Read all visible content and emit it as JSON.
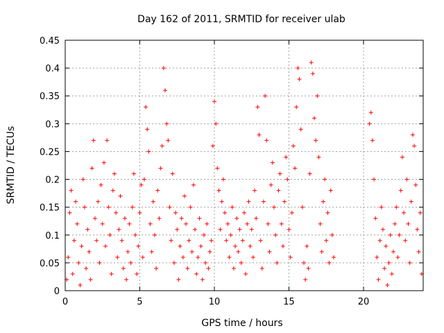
{
  "chart_data": {
    "type": "scatter",
    "title": "Day 162 of 2011, SRMTID for receiver ulab",
    "xlabel": "GPS time / hours",
    "ylabel": "SRMTID / TECUs",
    "xlim": [
      0,
      24
    ],
    "ylim": [
      0,
      0.45
    ],
    "xticks": [
      0,
      5,
      10,
      15,
      20
    ],
    "xtick_labels": [
      "0",
      "5",
      "10",
      "15",
      "20"
    ],
    "yticks": [
      0,
      0.05,
      0.1,
      0.15,
      0.2,
      0.25,
      0.3,
      0.35,
      0.4,
      0.45
    ],
    "ytick_labels": [
      "0",
      "0.05",
      "0.1",
      "0.15",
      "0.2",
      "0.25",
      "0.3",
      "0.35",
      "0.4",
      "0.45"
    ],
    "grid": true,
    "marker": "+",
    "color": "#ff0000",
    "series": [
      {
        "name": "SRMTID",
        "points": [
          [
            0.1,
            0.02
          ],
          [
            0.2,
            0.06
          ],
          [
            0.3,
            0.14
          ],
          [
            0.4,
            0.18
          ],
          [
            0.5,
            0.03
          ],
          [
            0.6,
            0.09
          ],
          [
            0.7,
            0.16
          ],
          [
            0.8,
            0.12
          ],
          [
            0.9,
            0.05
          ],
          [
            1.0,
            0.01
          ],
          [
            1.1,
            0.08
          ],
          [
            1.2,
            0.2
          ],
          [
            1.3,
            0.15
          ],
          [
            1.4,
            0.04
          ],
          [
            1.5,
            0.11
          ],
          [
            1.6,
            0.07
          ],
          [
            1.7,
            0.02
          ],
          [
            1.8,
            0.22
          ],
          [
            1.9,
            0.27
          ],
          [
            2.0,
            0.13
          ],
          [
            2.1,
            0.09
          ],
          [
            2.2,
            0.16
          ],
          [
            2.3,
            0.05
          ],
          [
            2.4,
            0.19
          ],
          [
            2.5,
            0.12
          ],
          [
            2.6,
            0.23
          ],
          [
            2.7,
            0.08
          ],
          [
            2.8,
            0.27
          ],
          [
            2.9,
            0.15
          ],
          [
            3.0,
            0.1
          ],
          [
            3.1,
            0.03
          ],
          [
            3.2,
            0.18
          ],
          [
            3.3,
            0.21
          ],
          [
            3.4,
            0.14
          ],
          [
            3.5,
            0.06
          ],
          [
            3.6,
            0.11
          ],
          [
            3.7,
            0.17
          ],
          [
            3.8,
            0.09
          ],
          [
            3.9,
            0.04
          ],
          [
            4.0,
            0.13
          ],
          [
            4.1,
            0.02
          ],
          [
            4.2,
            0.07
          ],
          [
            4.3,
            0.12
          ],
          [
            4.4,
            0.05
          ],
          [
            4.5,
            0.15
          ],
          [
            4.6,
            0.21
          ],
          [
            4.7,
            0.1
          ],
          [
            4.8,
            0.03
          ],
          [
            4.9,
            0.08
          ],
          [
            5.0,
            0.14
          ],
          [
            5.1,
            0.19
          ],
          [
            5.2,
            0.06
          ],
          [
            5.3,
            0.2
          ],
          [
            5.4,
            0.33
          ],
          [
            5.5,
            0.29
          ],
          [
            5.6,
            0.25
          ],
          [
            5.7,
            0.12
          ],
          [
            5.8,
            0.07
          ],
          [
            5.9,
            0.16
          ],
          [
            6.0,
            0.1
          ],
          [
            6.1,
            0.04
          ],
          [
            6.2,
            0.18
          ],
          [
            6.3,
            0.13
          ],
          [
            6.4,
            0.22
          ],
          [
            6.5,
            0.26
          ],
          [
            6.6,
            0.4
          ],
          [
            6.7,
            0.36
          ],
          [
            6.8,
            0.3
          ],
          [
            6.9,
            0.27
          ],
          [
            7.0,
            0.15
          ],
          [
            7.1,
            0.09
          ],
          [
            7.2,
            0.21
          ],
          [
            7.3,
            0.05
          ],
          [
            7.4,
            0.14
          ],
          [
            7.5,
            0.11
          ],
          [
            7.6,
            0.02
          ],
          [
            7.7,
            0.08
          ],
          [
            7.8,
            0.13
          ],
          [
            7.9,
            0.06
          ],
          [
            8.0,
            0.17
          ],
          [
            8.1,
            0.12
          ],
          [
            8.2,
            0.04
          ],
          [
            8.3,
            0.09
          ],
          [
            8.4,
            0.15
          ],
          [
            8.5,
            0.07
          ],
          [
            8.6,
            0.19
          ],
          [
            8.7,
            0.11
          ],
          [
            8.8,
            0.03
          ],
          [
            8.9,
            0.06
          ],
          [
            9.0,
            0.13
          ],
          [
            9.1,
            0.08
          ],
          [
            9.2,
            0.02
          ],
          [
            9.3,
            0.1
          ],
          [
            9.4,
            0.05
          ],
          [
            9.5,
            0.12
          ],
          [
            9.6,
            0.04
          ],
          [
            9.7,
            0.07
          ],
          [
            9.8,
            0.09
          ],
          [
            9.9,
            0.26
          ],
          [
            10.0,
            0.34
          ],
          [
            10.1,
            0.3
          ],
          [
            10.2,
            0.22
          ],
          [
            10.3,
            0.18
          ],
          [
            10.4,
            0.11
          ],
          [
            10.5,
            0.16
          ],
          [
            10.6,
            0.2
          ],
          [
            10.7,
            0.14
          ],
          [
            10.8,
            0.09
          ],
          [
            10.9,
            0.12
          ],
          [
            11.0,
            0.06
          ],
          [
            11.1,
            0.1
          ],
          [
            11.2,
            0.15
          ],
          [
            11.3,
            0.04
          ],
          [
            11.4,
            0.08
          ],
          [
            11.5,
            0.13
          ],
          [
            11.6,
            0.07
          ],
          [
            11.7,
            0.11
          ],
          [
            11.8,
            0.05
          ],
          [
            11.9,
            0.09
          ],
          [
            12.0,
            0.14
          ],
          [
            12.1,
            0.03
          ],
          [
            12.2,
            0.12
          ],
          [
            12.3,
            0.16
          ],
          [
            12.4,
            0.08
          ],
          [
            12.5,
            0.11
          ],
          [
            12.6,
            0.06
          ],
          [
            12.7,
            0.18
          ],
          [
            12.8,
            0.13
          ],
          [
            12.9,
            0.33
          ],
          [
            13.0,
            0.28
          ],
          [
            13.1,
            0.09
          ],
          [
            13.2,
            0.04
          ],
          [
            13.3,
            0.16
          ],
          [
            13.4,
            0.35
          ],
          [
            13.5,
            0.27
          ],
          [
            13.6,
            0.12
          ],
          [
            13.7,
            0.07
          ],
          [
            13.8,
            0.19
          ],
          [
            13.9,
            0.23
          ],
          [
            14.0,
            0.15
          ],
          [
            14.1,
            0.1
          ],
          [
            14.2,
            0.05
          ],
          [
            14.3,
            0.18
          ],
          [
            14.4,
            0.21
          ],
          [
            14.5,
            0.12
          ],
          [
            14.6,
            0.08
          ],
          [
            14.7,
            0.16
          ],
          [
            14.8,
            0.24
          ],
          [
            14.9,
            0.2
          ],
          [
            15.0,
            0.11
          ],
          [
            15.1,
            0.06
          ],
          [
            15.2,
            0.14
          ],
          [
            15.3,
            0.26
          ],
          [
            15.4,
            0.22
          ],
          [
            15.5,
            0.33
          ],
          [
            15.6,
            0.4
          ],
          [
            15.7,
            0.38
          ],
          [
            15.8,
            0.29
          ],
          [
            15.9,
            0.15
          ],
          [
            16.0,
            0.05
          ],
          [
            16.1,
            0.02
          ],
          [
            16.2,
            0.08
          ],
          [
            16.3,
            0.04
          ],
          [
            16.4,
            0.21
          ],
          [
            16.5,
            0.41
          ],
          [
            16.6,
            0.39
          ],
          [
            16.7,
            0.31
          ],
          [
            16.8,
            0.27
          ],
          [
            16.9,
            0.35
          ],
          [
            17.0,
            0.24
          ],
          [
            17.1,
            0.12
          ],
          [
            17.2,
            0.07
          ],
          [
            17.3,
            0.16
          ],
          [
            17.4,
            0.2
          ],
          [
            17.5,
            0.09
          ],
          [
            17.6,
            0.14
          ],
          [
            17.7,
            0.05
          ],
          [
            17.8,
            0.18
          ],
          [
            17.9,
            0.1
          ],
          [
            18.0,
            0.06
          ],
          [
            20.4,
            0.3
          ],
          [
            20.5,
            0.32
          ],
          [
            20.6,
            0.27
          ],
          [
            20.7,
            0.2
          ],
          [
            20.8,
            0.13
          ],
          [
            20.9,
            0.06
          ],
          [
            21.0,
            0.02
          ],
          [
            21.1,
            0.09
          ],
          [
            21.2,
            0.15
          ],
          [
            21.3,
            0.11
          ],
          [
            21.4,
            0.04
          ],
          [
            21.5,
            0.08
          ],
          [
            21.6,
            0.01
          ],
          [
            21.7,
            0.05
          ],
          [
            21.8,
            0.1
          ],
          [
            21.9,
            0.03
          ],
          [
            22.0,
            0.07
          ],
          [
            22.1,
            0.12
          ],
          [
            22.2,
            0.15
          ],
          [
            22.3,
            0.06
          ],
          [
            22.4,
            0.1
          ],
          [
            22.5,
            0.18
          ],
          [
            22.6,
            0.24
          ],
          [
            22.7,
            0.14
          ],
          [
            22.8,
            0.09
          ],
          [
            22.9,
            0.2
          ],
          [
            23.0,
            0.12
          ],
          [
            23.1,
            0.05
          ],
          [
            23.2,
            0.16
          ],
          [
            23.3,
            0.28
          ],
          [
            23.4,
            0.26
          ],
          [
            23.5,
            0.19
          ],
          [
            23.6,
            0.11
          ],
          [
            23.7,
            0.07
          ],
          [
            23.8,
            0.14
          ],
          [
            23.9,
            0.03
          ]
        ]
      }
    ]
  }
}
